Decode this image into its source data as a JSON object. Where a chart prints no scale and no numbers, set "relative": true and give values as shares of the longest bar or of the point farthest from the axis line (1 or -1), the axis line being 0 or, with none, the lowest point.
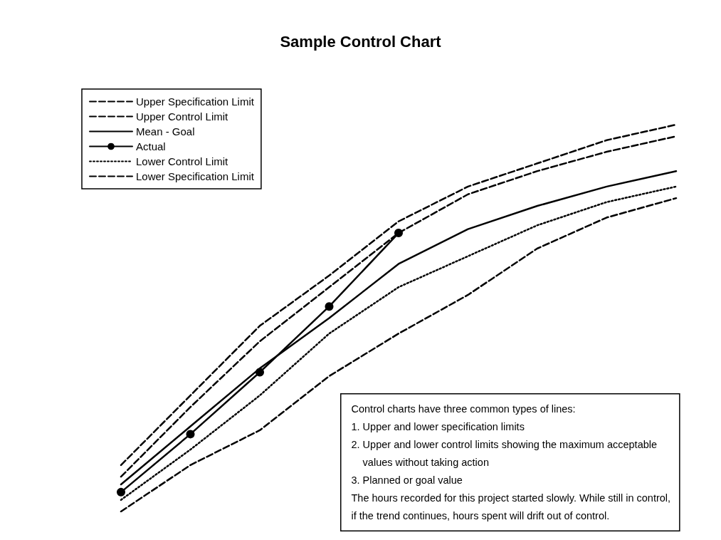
{
  "chart_data": {
    "type": "line",
    "title": "Sample Control Chart",
    "relative": true,
    "categories": [
      null,
      null,
      null,
      null,
      null,
      null,
      null,
      null,
      null
    ],
    "series": [
      {
        "name": "Upper Specification Limit",
        "color": "#000000",
        "line_style": "dashed",
        "marker": "none",
        "values": [
          0.12,
          0.3,
          0.48,
          0.61,
          0.75,
          0.84,
          0.9,
          0.96,
          1.0
        ]
      },
      {
        "name": "Upper Control Limit",
        "color": "#000000",
        "line_style": "dashed",
        "marker": "none",
        "values": [
          0.09,
          0.27,
          0.44,
          0.58,
          0.72,
          0.82,
          0.88,
          0.93,
          0.97
        ]
      },
      {
        "name": "Mean - Goal",
        "color": "#000000",
        "line_style": "solid",
        "marker": "none",
        "values": [
          0.07,
          0.22,
          0.37,
          0.5,
          0.64,
          0.73,
          0.79,
          0.84,
          0.88
        ]
      },
      {
        "name": "Actual",
        "color": "#000000",
        "line_style": "solid",
        "marker": "circle",
        "values": [
          0.05,
          0.2,
          0.36,
          0.53,
          0.72,
          null,
          null,
          null,
          null
        ]
      },
      {
        "name": "Lower Control Limit",
        "color": "#000000",
        "line_style": "dotted",
        "marker": "none",
        "values": [
          0.03,
          0.16,
          0.3,
          0.46,
          0.58,
          0.66,
          0.74,
          0.8,
          0.84
        ]
      },
      {
        "name": "Lower Specification Limit",
        "color": "#000000",
        "line_style": "dashed",
        "marker": "none",
        "values": [
          0.0,
          0.12,
          0.21,
          0.35,
          0.46,
          0.56,
          0.68,
          0.76,
          0.81
        ]
      }
    ],
    "legend": "top left",
    "grid": false,
    "annotations": [
      "Control charts have three common types of lines:\n1. Upper and lower specification limits\n2. Upper and lower control limits showing the maximum acceptable\n    values without taking action\n3. Planned or goal value\nThe hours recorded for this project started slowly. While still in control,\nif the trend continues, hours spent will drift out of control."
    ]
  }
}
